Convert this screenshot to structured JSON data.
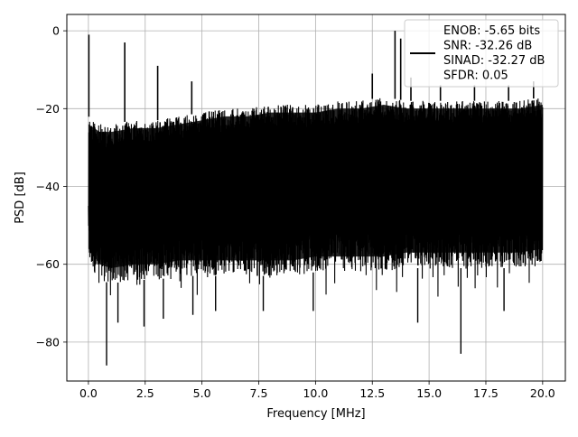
{
  "chart_data": {
    "type": "line",
    "title": "",
    "xlabel": "Frequency [MHz]",
    "ylabel": "PSD [dB]",
    "xlim": [
      -0.95,
      21.0
    ],
    "ylim": [
      -90.0,
      4.2
    ],
    "xticks": [
      0.0,
      2.5,
      5.0,
      7.5,
      10.0,
      12.5,
      15.0,
      17.5,
      20.0
    ],
    "xtick_labels": [
      "0.0",
      "2.5",
      "5.0",
      "7.5",
      "10.0",
      "12.5",
      "15.0",
      "17.5",
      "20.0"
    ],
    "yticks": [
      0,
      -20,
      -40,
      -60,
      -80
    ],
    "ytick_labels": [
      "0",
      "−20",
      "−40",
      "−60",
      "−80"
    ],
    "grid": true,
    "legend_position": "top-right",
    "series_color": "#000000",
    "series": [
      {
        "name": "ENOB: -5.65 bits\nSNR: -32.26 dB\nSINAD: -32.27 dB\nSFDR: 0.05",
        "description": "noisy PSD trace, dense band roughly -65 to -22 dB across 0-20 MHz",
        "x": [
          0.0,
          0.02,
          0.05,
          0.3,
          0.8,
          1.2,
          1.6,
          2.0,
          2.5,
          2.8,
          3.0,
          3.3,
          4.0,
          4.5,
          5.0,
          6.0,
          7.0,
          8.0,
          9.0,
          10.0,
          11.0,
          12.0,
          12.5,
          13.0,
          13.5,
          13.8,
          14.0,
          14.5,
          15.0,
          16.0,
          16.4,
          17.0,
          18.0,
          19.0,
          19.6,
          20.0
        ],
        "y": [
          -45,
          -1,
          -18,
          -25,
          -24,
          -23,
          -3,
          -23,
          -22,
          -22,
          -9,
          -22,
          -21,
          -21,
          -20,
          -20,
          -19,
          -19,
          -19,
          -18,
          -18,
          -17,
          -11,
          -14,
          0,
          -2,
          -16,
          -18,
          -18,
          -18,
          -18,
          -18,
          -18,
          -18,
          -17,
          -20
        ]
      }
    ],
    "envelope": {
      "x": [
        0.0,
        0.5,
        1.0,
        2.0,
        3.0,
        4.0,
        5.0,
        6.0,
        7.0,
        8.0,
        9.0,
        10.0,
        11.0,
        12.0,
        13.0,
        14.0,
        15.0,
        16.0,
        17.0,
        18.0,
        19.0,
        20.0
      ],
      "upper": [
        -22,
        -24,
        -24,
        -23,
        -23,
        -22,
        -21,
        -20,
        -20,
        -19,
        -19,
        -19,
        -18,
        -18,
        -17,
        -18,
        -18,
        -18,
        -18,
        -18,
        -18,
        -17
      ],
      "lower": [
        -60,
        -64,
        -65,
        -64,
        -64,
        -63,
        -63,
        -63,
        -63,
        -63,
        -63,
        -62,
        -62,
        -62,
        -62,
        -61,
        -61,
        -61,
        -61,
        -61,
        -61,
        -60
      ]
    },
    "spurs": [
      {
        "x": 0.02,
        "y": -1
      },
      {
        "x": 1.6,
        "y": -3
      },
      {
        "x": 3.05,
        "y": -9
      },
      {
        "x": 4.55,
        "y": -13
      },
      {
        "x": 12.5,
        "y": -11
      },
      {
        "x": 13.5,
        "y": 0
      },
      {
        "x": 13.75,
        "y": -2
      },
      {
        "x": 14.2,
        "y": -12
      },
      {
        "x": 15.5,
        "y": -14
      },
      {
        "x": 17.0,
        "y": -14
      },
      {
        "x": 18.5,
        "y": -14
      },
      {
        "x": 19.6,
        "y": -13
      }
    ],
    "dips": [
      {
        "x": 0.8,
        "y": -86
      },
      {
        "x": 1.3,
        "y": -75
      },
      {
        "x": 2.45,
        "y": -76
      },
      {
        "x": 3.3,
        "y": -74
      },
      {
        "x": 4.6,
        "y": -73
      },
      {
        "x": 5.6,
        "y": -72
      },
      {
        "x": 7.7,
        "y": -72
      },
      {
        "x": 9.9,
        "y": -72
      },
      {
        "x": 14.5,
        "y": -75
      },
      {
        "x": 16.4,
        "y": -83
      },
      {
        "x": 18.3,
        "y": -72
      }
    ]
  }
}
